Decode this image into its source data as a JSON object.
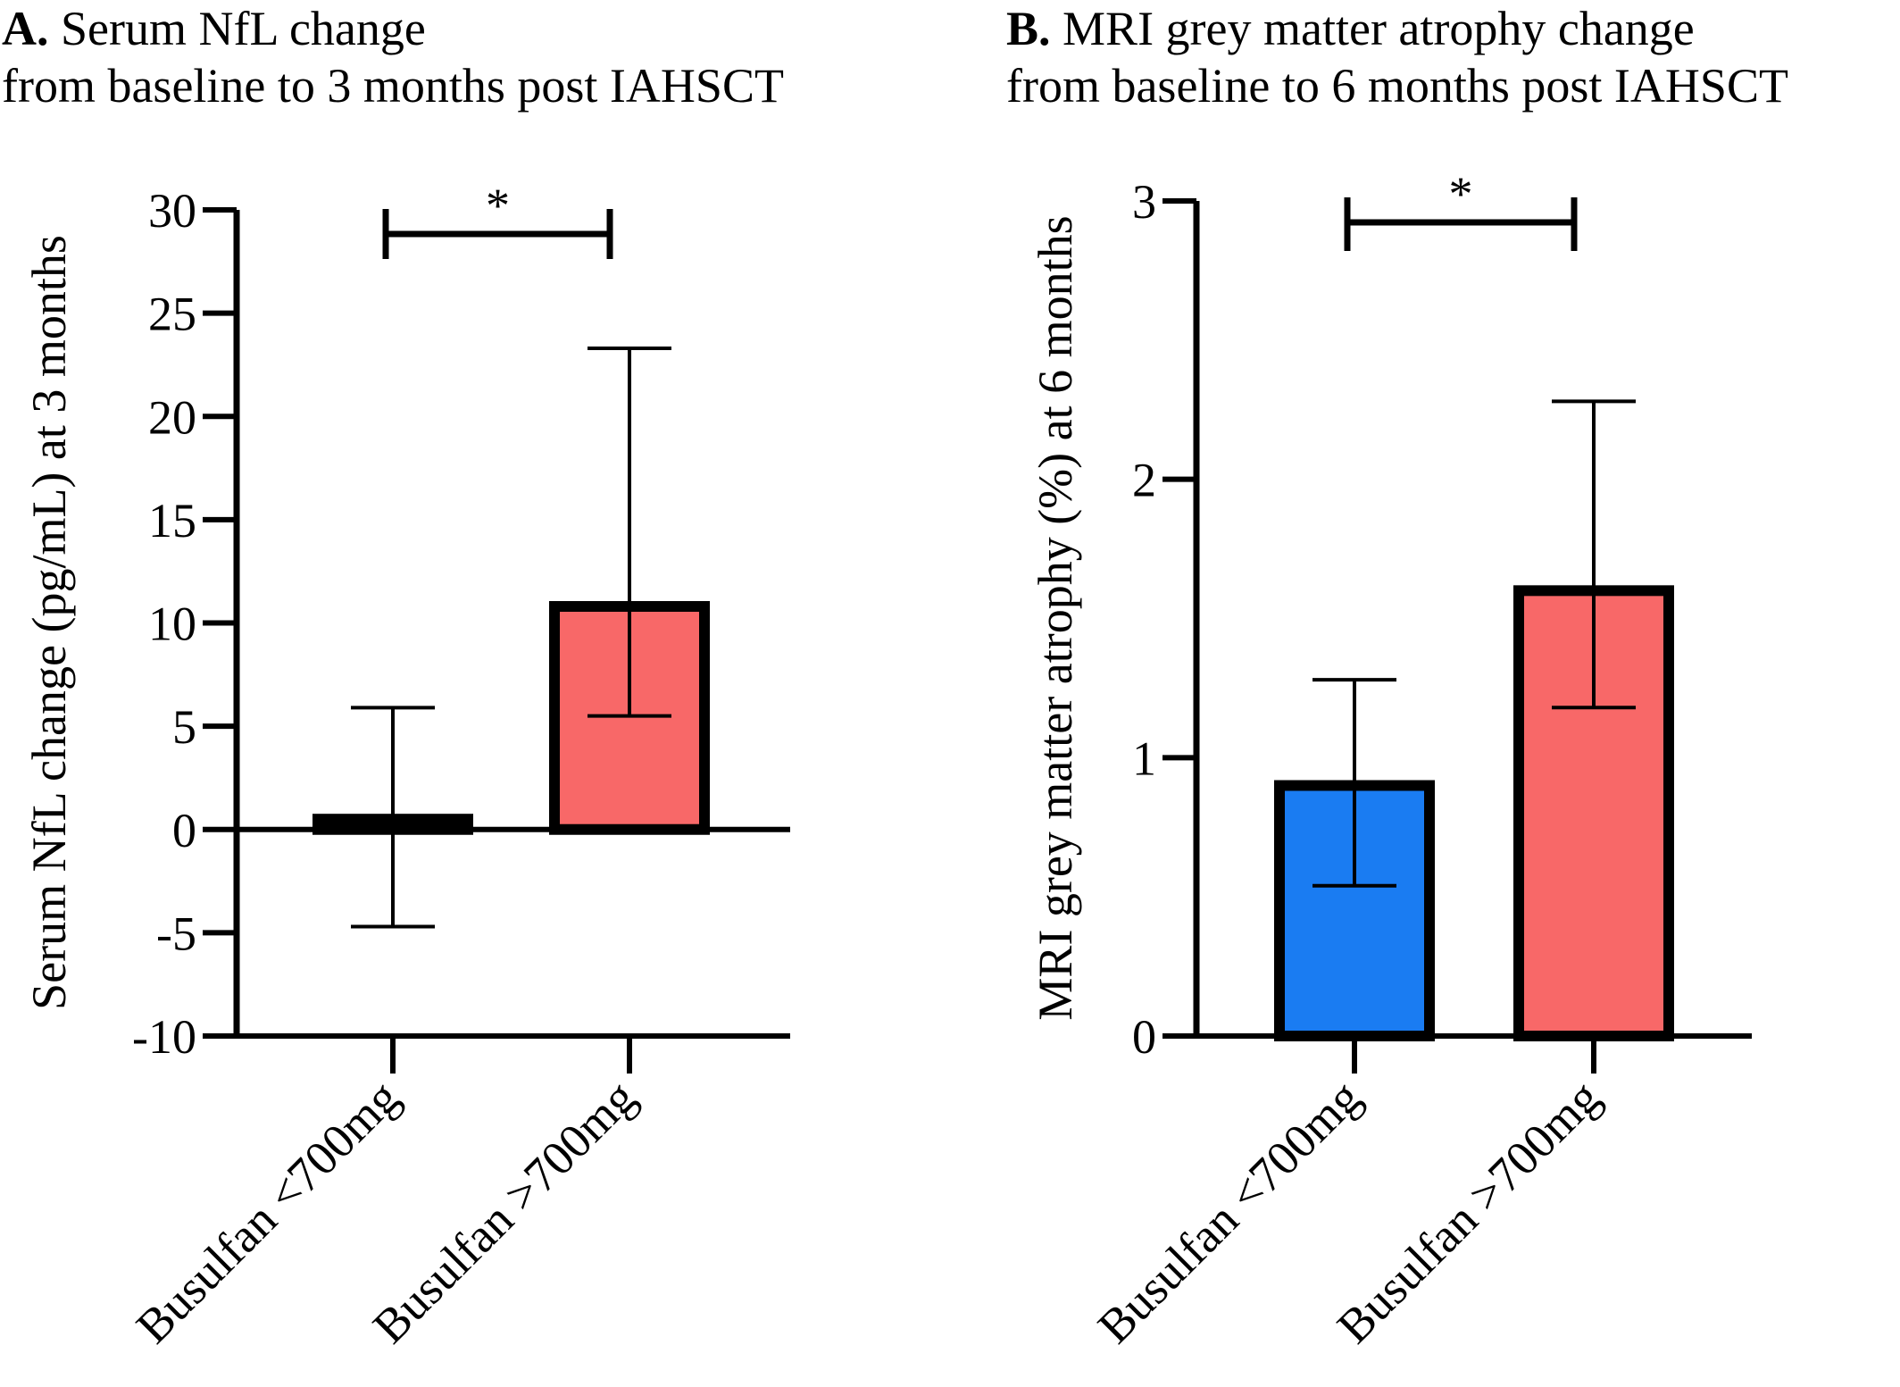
{
  "panels": {
    "a": {
      "letter": "A.",
      "title_line1": "Serum NfL change",
      "title_line2": "from baseline to 3 months post IAHSCT"
    },
    "b": {
      "letter": "B.",
      "title_line1": "MRI grey matter atrophy change",
      "title_line2": "from baseline to 6 months post IAHSCT"
    }
  },
  "chart_data": [
    {
      "type": "bar",
      "title": "Serum NfL change from baseline to 3 months post IAHSCT",
      "ylabel": "Serum NfL change (pg/mL) at 3 months",
      "xlabel": "",
      "ylim": [
        -10,
        30
      ],
      "yticks": [
        -10,
        -5,
        0,
        5,
        10,
        15,
        20,
        25,
        30
      ],
      "ytick_labels": [
        "-10",
        "-5",
        "0",
        "5",
        "10",
        "15",
        "20",
        "25",
        "30"
      ],
      "categories": [
        "Busulfan <700mg",
        "Busulfan >700mg"
      ],
      "values": [
        0.5,
        10.8
      ],
      "error_upper": [
        5.9,
        23.3
      ],
      "error_lower": [
        -4.7,
        5.5
      ],
      "colors": [
        "#1a7cf2",
        "#f86868"
      ],
      "significance": {
        "between": [
          0,
          1
        ],
        "label": "*"
      },
      "grid": false,
      "legend": "none"
    },
    {
      "type": "bar",
      "title": "MRI grey matter atrophy change from baseline to 6 months post IAHSCT",
      "ylabel": "MRI grey matter atrophy (%) at 6 months",
      "xlabel": "",
      "ylim": [
        0,
        3
      ],
      "yticks": [
        0,
        1,
        2,
        3
      ],
      "ytick_labels": [
        "0",
        "1",
        "2",
        "3"
      ],
      "categories": [
        "Busulfan <700mg",
        "Busulfan >700mg"
      ],
      "values": [
        0.9,
        1.6
      ],
      "error_upper": [
        1.28,
        2.28
      ],
      "error_lower": [
        0.54,
        1.18
      ],
      "colors": [
        "#1a7cf2",
        "#f86868"
      ],
      "significance": {
        "between": [
          0,
          1
        ],
        "label": "*"
      },
      "grid": false,
      "legend": "none"
    }
  ]
}
